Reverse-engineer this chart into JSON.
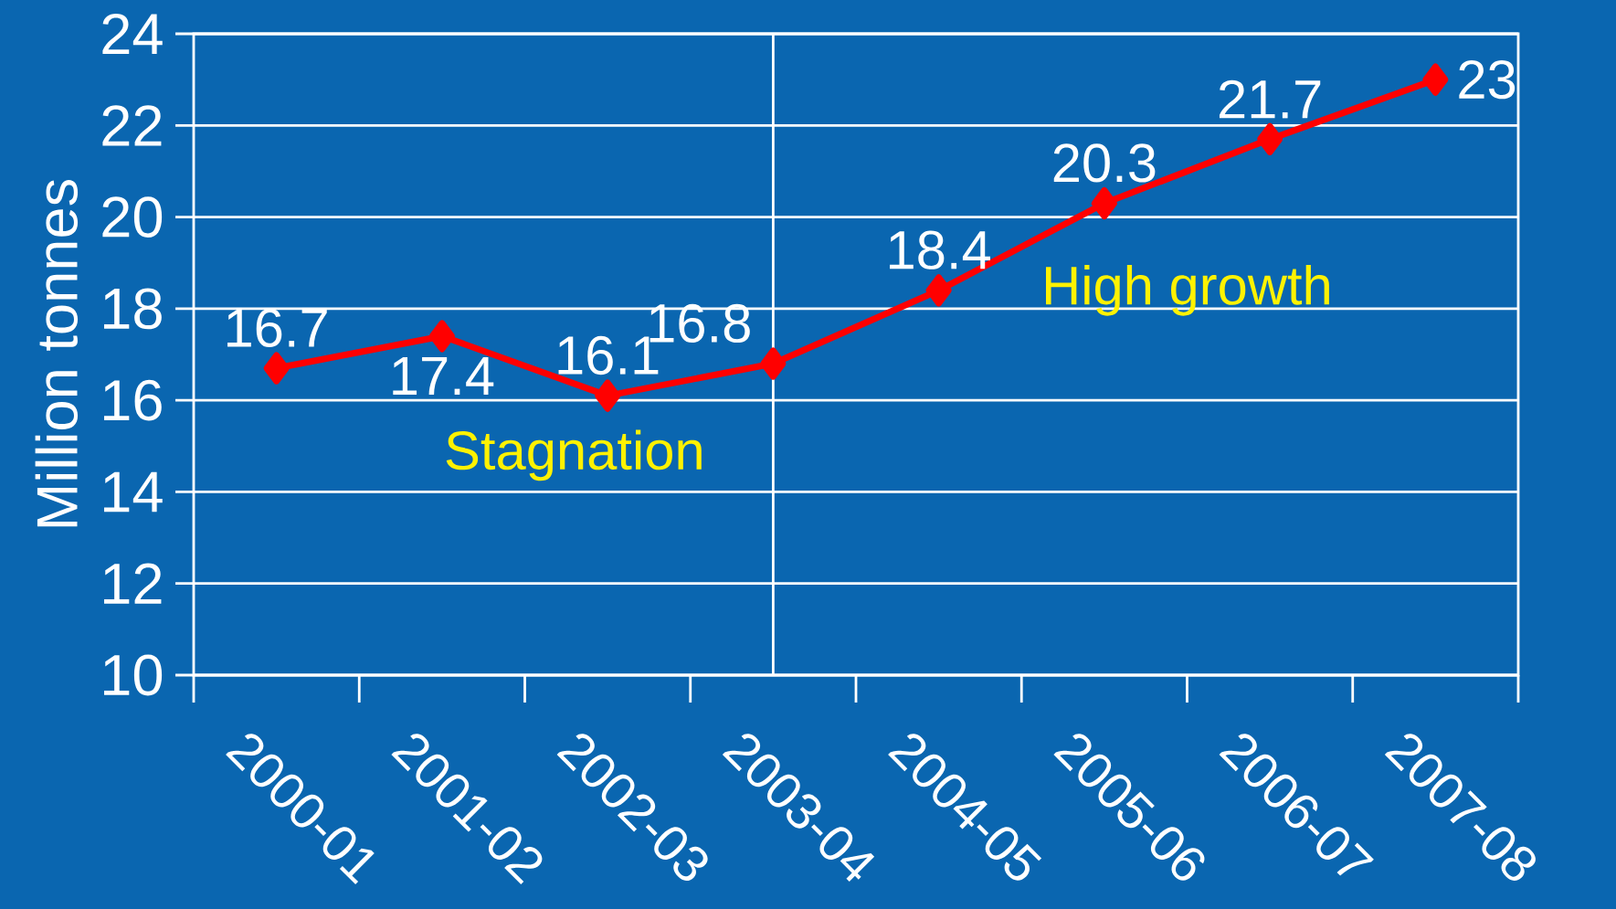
{
  "chart_data": {
    "type": "line",
    "ylabel": "Million tonnes",
    "categories": [
      "2000-01",
      "2001-02",
      "2002-03",
      "2003-04",
      "2004-05",
      "2005-06",
      "2006-07",
      "2007-08"
    ],
    "values": [
      16.7,
      17.4,
      16.1,
      16.8,
      18.4,
      20.3,
      21.7,
      23
    ],
    "color": "#ff0000",
    "marker": "diamond",
    "data_labels": true,
    "ylim": [
      10,
      24
    ],
    "yticks": [
      10,
      12,
      14,
      16,
      18,
      20,
      22,
      24
    ],
    "grid": "y",
    "ref_lines": [
      {
        "axis": "x",
        "value": "2003-04",
        "color": "#ffffff"
      }
    ],
    "annotations": [
      "Stagnation",
      "High growth"
    ]
  }
}
